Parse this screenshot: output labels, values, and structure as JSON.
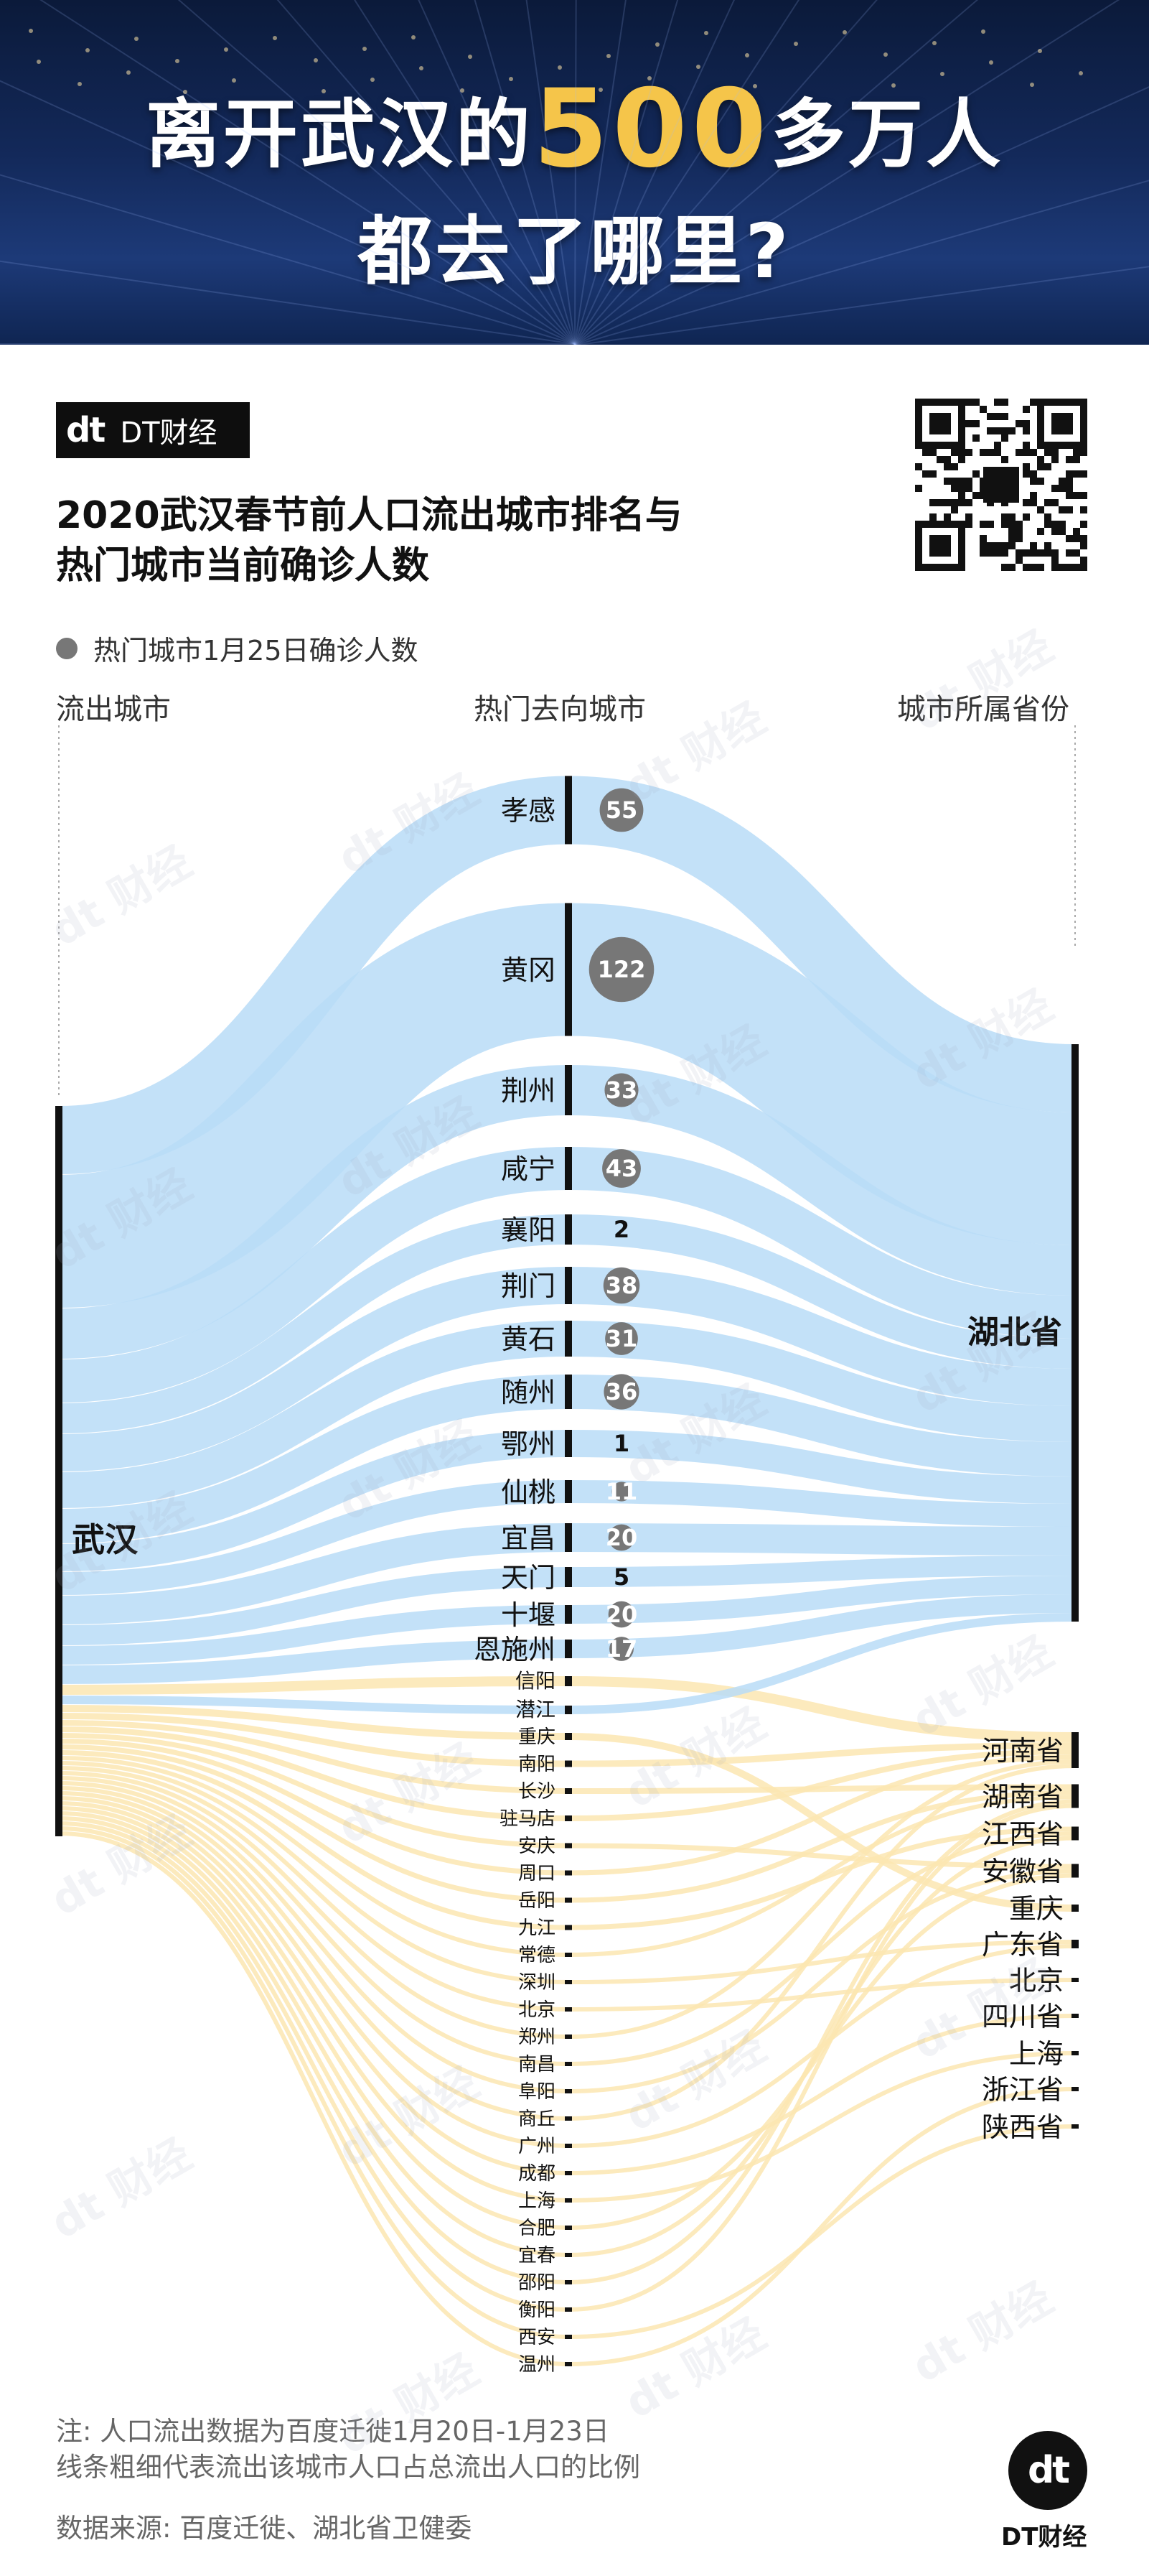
{
  "headline": {
    "line1_pre": "离开武汉的",
    "line1_num": "500",
    "line1_post": "多万人",
    "line2": "都去了哪里?"
  },
  "brand": {
    "logo_mark": "dt",
    "name": "DT财经"
  },
  "title": {
    "line1": "2020武汉春节前人口流出城市排名与",
    "line2": "热门城市当前确诊人数"
  },
  "legend": {
    "label": "热门城市1月25日确诊人数",
    "color": "#7a7a7a"
  },
  "columns": {
    "left": "流出城市",
    "middle": "热门去向城市",
    "right": "城市所属省份"
  },
  "notes": {
    "line1": "注: 人口流出数据为百度迁徙1月20日-1月23日",
    "line2": "线条粗细代表流出该城市人口占总流出人口的比例",
    "source": "数据来源: 百度迁徙、湖北省卫健委"
  },
  "watermark": "dt 财经",
  "colors": {
    "hubei_flow": "#b9dcf7",
    "hubei_flow_dark": "#8ec4ee",
    "other_flow": "#fbe6b2",
    "bar": "#111111",
    "bubble": "#777777"
  },
  "chart_data": {
    "type": "sankey",
    "source": "武汉",
    "cities": [
      {
        "name": "孝感",
        "province": "湖北省",
        "confirmed": "55"
      },
      {
        "name": "黄冈",
        "province": "湖北省",
        "confirmed": "122"
      },
      {
        "name": "荆州",
        "province": "湖北省",
        "confirmed": "33"
      },
      {
        "name": "咸宁",
        "province": "湖北省",
        "confirmed": "43"
      },
      {
        "name": "襄阳",
        "province": "湖北省",
        "confirmed": "2"
      },
      {
        "name": "荆门",
        "province": "湖北省",
        "confirmed": "38"
      },
      {
        "name": "黄石",
        "province": "湖北省",
        "confirmed": "31"
      },
      {
        "name": "随州",
        "province": "湖北省",
        "confirmed": "36"
      },
      {
        "name": "鄂州",
        "province": "湖北省",
        "confirmed": "1"
      },
      {
        "name": "仙桃",
        "province": "湖北省",
        "confirmed": "11"
      },
      {
        "name": "宜昌",
        "province": "湖北省",
        "confirmed": "20"
      },
      {
        "name": "天门",
        "province": "湖北省",
        "confirmed": "5"
      },
      {
        "name": "十堰",
        "province": "湖北省",
        "confirmed": "20"
      },
      {
        "name": "恩施州",
        "province": "湖北省",
        "confirmed": "17"
      },
      {
        "name": "信阳",
        "province": "河南省",
        "confirmed": ""
      },
      {
        "name": "潜江",
        "province": "湖北省",
        "confirmed": ""
      },
      {
        "name": "重庆",
        "province": "重庆",
        "confirmed": ""
      },
      {
        "name": "南阳",
        "province": "河南省",
        "confirmed": ""
      },
      {
        "name": "长沙",
        "province": "湖南省",
        "confirmed": ""
      },
      {
        "name": "驻马店",
        "province": "河南省",
        "confirmed": ""
      },
      {
        "name": "安庆",
        "province": "安徽省",
        "confirmed": ""
      },
      {
        "name": "周口",
        "province": "河南省",
        "confirmed": ""
      },
      {
        "name": "岳阳",
        "province": "湖南省",
        "confirmed": ""
      },
      {
        "name": "九江",
        "province": "江西省",
        "confirmed": ""
      },
      {
        "name": "常德",
        "province": "湖南省",
        "confirmed": ""
      },
      {
        "name": "深圳",
        "province": "广东省",
        "confirmed": ""
      },
      {
        "name": "北京",
        "province": "北京",
        "confirmed": ""
      },
      {
        "name": "郑州",
        "province": "河南省",
        "confirmed": ""
      },
      {
        "name": "南昌",
        "province": "江西省",
        "confirmed": ""
      },
      {
        "name": "阜阳",
        "province": "安徽省",
        "confirmed": ""
      },
      {
        "name": "商丘",
        "province": "河南省",
        "confirmed": ""
      },
      {
        "name": "广州",
        "province": "广东省",
        "confirmed": ""
      },
      {
        "name": "成都",
        "province": "四川省",
        "confirmed": ""
      },
      {
        "name": "上海",
        "province": "上海",
        "confirmed": ""
      },
      {
        "name": "合肥",
        "province": "安徽省",
        "confirmed": ""
      },
      {
        "name": "宜春",
        "province": "江西省",
        "confirmed": ""
      },
      {
        "name": "邵阳",
        "province": "湖南省",
        "confirmed": ""
      },
      {
        "name": "衡阳",
        "province": "湖南省",
        "confirmed": ""
      },
      {
        "name": "西安",
        "province": "陕西省",
        "confirmed": ""
      },
      {
        "name": "温州",
        "province": "浙江省",
        "confirmed": ""
      }
    ],
    "provinces": [
      "湖北省",
      "河南省",
      "湖南省",
      "江西省",
      "安徽省",
      "重庆",
      "广东省",
      "北京",
      "四川省",
      "上海",
      "浙江省",
      "陕西省"
    ]
  }
}
